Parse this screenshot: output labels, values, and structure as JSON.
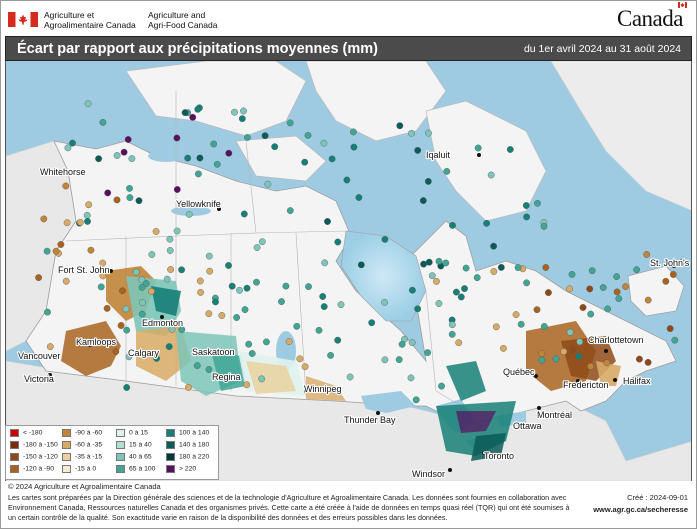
{
  "header": {
    "org_fr_line1": "Agriculture et",
    "org_fr_line2": "Agroalimentaire Canada",
    "org_en_line1": "Agriculture and",
    "org_en_line2": "Agri-Food Canada",
    "wordmark": "Canada"
  },
  "title": "Écart par rapport aux précipitations moyennes (mm)",
  "period": "du 1er avril 2024 au 31 août 2024",
  "cities": [
    "Iqaluit",
    "Whitehorse",
    "Yellowknife",
    "St. John's",
    "Fort St. John",
    "Edmonton",
    "Charlottetown",
    "Kamloops",
    "Saskatoon",
    "Vancouver",
    "Calgary",
    "Halifax",
    "Victoria",
    "Regina",
    "Québec",
    "Fredericton",
    "Winnipeg",
    "Montréal",
    "Thunder Bay",
    "Ottawa",
    "Toronto",
    "Windsor"
  ],
  "legend": [
    {
      "label": "< -180",
      "color": "#cc0000"
    },
    {
      "label": "-180 à -150",
      "color": "#7a2e0b"
    },
    {
      "label": "-150 à -120",
      "color": "#8f4a17"
    },
    {
      "label": "-120 à -90",
      "color": "#a8641f"
    },
    {
      "label": "-90 à -60",
      "color": "#c0843a"
    },
    {
      "label": "-60 à -35",
      "color": "#d8aa66"
    },
    {
      "label": "-35 à -15",
      "color": "#ead09a"
    },
    {
      "label": "-15 à 0",
      "color": "#f7ecd0"
    },
    {
      "label": "0 à 15",
      "color": "#e0f2ee"
    },
    {
      "label": "15 à 40",
      "color": "#b3ddd5"
    },
    {
      "label": "40 à 65",
      "color": "#7dc5b8"
    },
    {
      "label": "65 à 100",
      "color": "#3fa595"
    },
    {
      "label": "100 à 140",
      "color": "#168077"
    },
    {
      "label": "140 à 180",
      "color": "#0c5b58"
    },
    {
      "label": "180 à 220",
      "color": "#063a3a"
    },
    {
      "label": "> 220",
      "color": "#5a1060"
    }
  ],
  "footer": {
    "copyright": "© 2024 Agriculture et Agroalimentaire Canada",
    "note": "Les cartes sont préparées par la Direction générale des sciences et de la technologie d'Agriculture et Agroalimentaire Canada. Les données sont fournies en collaboration avec Environnement Canada, Ressources naturelles Canada et des organismes privés. Cette carte a été créée à l'aide de données en temps quasi réel (TQR) qui ont été soumises à un certain contrôle de la qualité. Son exactitude varie en raison de la disponibilité des données et des erreurs possibles dans les données.",
    "created": "Créé : 2024-09-01",
    "url": "www.agr.gc.ca/secheresse"
  }
}
